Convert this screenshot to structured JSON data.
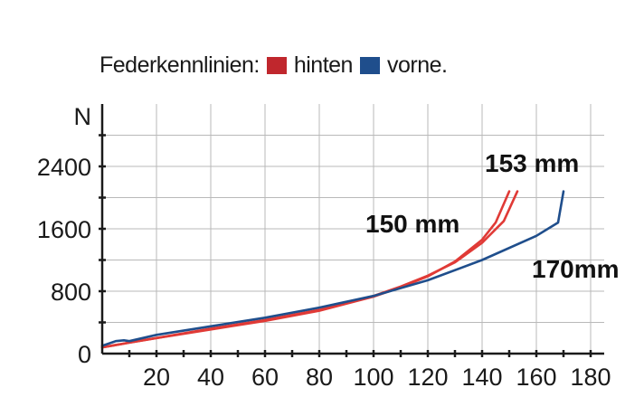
{
  "chart_data": {
    "type": "line",
    "legend_title": "Federkennlinien:",
    "ylabel": "N",
    "xlim": [
      0,
      185
    ],
    "ylim": [
      0,
      2900
    ],
    "x_ticks": [
      20,
      40,
      60,
      80,
      100,
      120,
      140,
      160,
      180
    ],
    "y_ticks": [
      0,
      800,
      1600,
      2400
    ],
    "grid": true,
    "colors": {
      "hinten": "#e03a36",
      "vorne": "#1f4e8c",
      "text": "#1a1a1a"
    },
    "series": [
      {
        "name": "hinten",
        "label": "150 mm",
        "color": "#e03a36",
        "points": [
          [
            0,
            80
          ],
          [
            10,
            140
          ],
          [
            20,
            200
          ],
          [
            40,
            310
          ],
          [
            60,
            420
          ],
          [
            80,
            550
          ],
          [
            100,
            730
          ],
          [
            110,
            850
          ],
          [
            120,
            990
          ],
          [
            130,
            1180
          ],
          [
            140,
            1460
          ],
          [
            145,
            1680
          ],
          [
            150,
            2080
          ]
        ]
      },
      {
        "name": "hinten",
        "label": "153 mm",
        "color": "#e03a36",
        "points": [
          [
            0,
            80
          ],
          [
            10,
            140
          ],
          [
            20,
            200
          ],
          [
            40,
            320
          ],
          [
            60,
            430
          ],
          [
            80,
            560
          ],
          [
            100,
            740
          ],
          [
            110,
            860
          ],
          [
            120,
            1000
          ],
          [
            130,
            1170
          ],
          [
            140,
            1420
          ],
          [
            148,
            1700
          ],
          [
            153,
            2080
          ]
        ]
      },
      {
        "name": "vorne",
        "label": "170mm",
        "color": "#1f4e8c",
        "points": [
          [
            0,
            100
          ],
          [
            5,
            160
          ],
          [
            8,
            170
          ],
          [
            10,
            160
          ],
          [
            20,
            240
          ],
          [
            40,
            350
          ],
          [
            60,
            460
          ],
          [
            80,
            590
          ],
          [
            100,
            740
          ],
          [
            120,
            940
          ],
          [
            140,
            1200
          ],
          [
            160,
            1510
          ],
          [
            168,
            1680
          ],
          [
            170,
            2080
          ]
        ]
      }
    ],
    "annotations": [
      "150 mm",
      "153 mm",
      "170mm"
    ],
    "legend": [
      {
        "label": "hinten",
        "color": "#c0272d"
      },
      {
        "label": "vorne",
        "color": "#1f4e8c"
      }
    ],
    "legend_suffix": "."
  }
}
